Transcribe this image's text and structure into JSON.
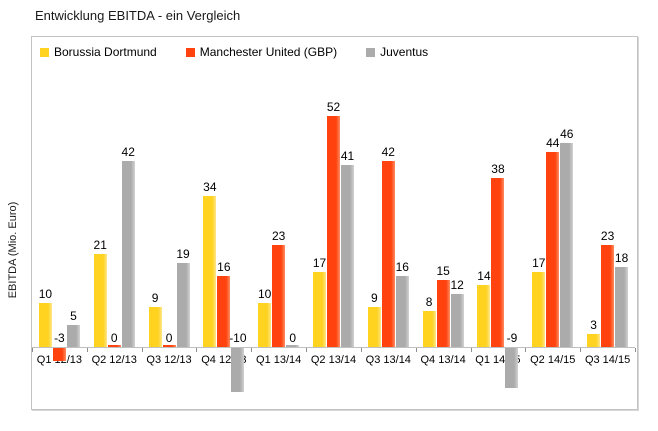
{
  "title": "Entwicklung EBITDA - ein Vergleich",
  "chart_data": {
    "type": "bar",
    "title": "Entwicklung EBITDA - ein Vergleich",
    "xlabel": "",
    "ylabel": "EBITDA (Mio. Euro)",
    "ylim": [
      -15,
      60
    ],
    "grid": false,
    "legend_position": "top-left-inside",
    "data_labels": true,
    "categories": [
      "Q1 12/13",
      "Q2 12/13",
      "Q3 12/13",
      "Q4 12/13",
      "Q1 13/14",
      "Q2 13/14",
      "Q3 13/14",
      "Q4 13/14",
      "Q1 14/15",
      "Q2 14/15",
      "Q3 14/15"
    ],
    "series": [
      {
        "name": "Borussia Dortmund",
        "color": "#ffd320",
        "color_light": "#ffe588",
        "values": [
          10,
          21,
          9,
          34,
          10,
          17,
          9,
          8,
          14,
          17,
          3
        ]
      },
      {
        "name": "Manchester United (GBP)",
        "color": "#ff420e",
        "color_light": "#ff8c62",
        "values": [
          -3,
          0,
          0,
          16,
          23,
          52,
          42,
          15,
          38,
          44,
          23
        ]
      },
      {
        "name": "Juventus",
        "color": "#ababab",
        "color_light": "#d2d2d2",
        "values": [
          5,
          42,
          19,
          -10,
          0,
          41,
          16,
          12,
          -9,
          46,
          18
        ]
      }
    ]
  }
}
